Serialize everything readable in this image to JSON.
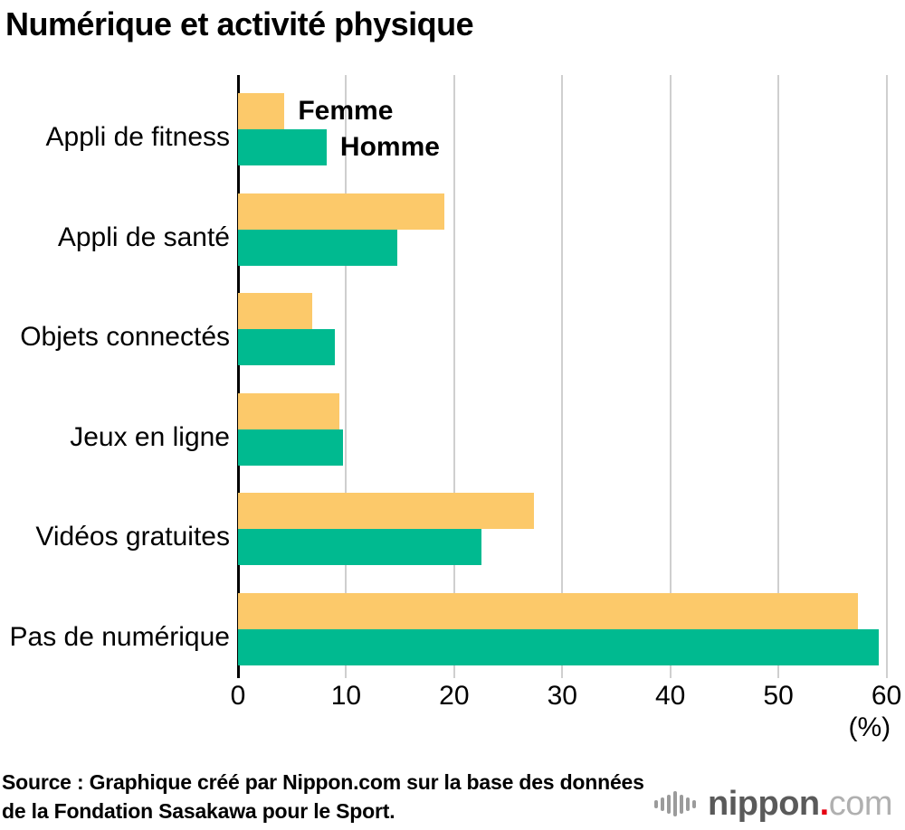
{
  "title": "Numérique et activité physique",
  "chart_data": {
    "type": "bar",
    "orientation": "horizontal",
    "title": "Numérique et activité physique",
    "categories": [
      "Appli de fitness",
      "Appli de santé",
      "Objets connectés",
      "Jeux en ligne",
      "Vidéos gratuites",
      "Pas de numérique"
    ],
    "series": [
      {
        "name": "Femme",
        "color": "#FCC96A",
        "values": [
          4.3,
          19.1,
          6.9,
          9.4,
          27.4,
          57.4
        ]
      },
      {
        "name": "Homme",
        "color": "#00BA90",
        "values": [
          8.2,
          14.7,
          9.0,
          9.7,
          22.5,
          59.3
        ]
      }
    ],
    "xlim": [
      0,
      60
    ],
    "xticks": [
      0,
      10,
      20,
      30,
      40,
      50,
      60
    ],
    "xlabel": "(%)",
    "grid": true,
    "gridline_color": "#cfcfcf",
    "axis_color": "#000000",
    "legend_position": "inline-next-to-first-bars"
  },
  "footer": {
    "source_line1": "Source : Graphique créé par Nippon.com sur la base des données",
    "source_line2": "de la Fondation Sasakawa pour le Sport.",
    "logo": {
      "icon": "soundwave-bars-icon",
      "text_main": "nippon",
      "text_dot": ".",
      "text_suffix": "com",
      "dot_color": "#e60012"
    }
  }
}
